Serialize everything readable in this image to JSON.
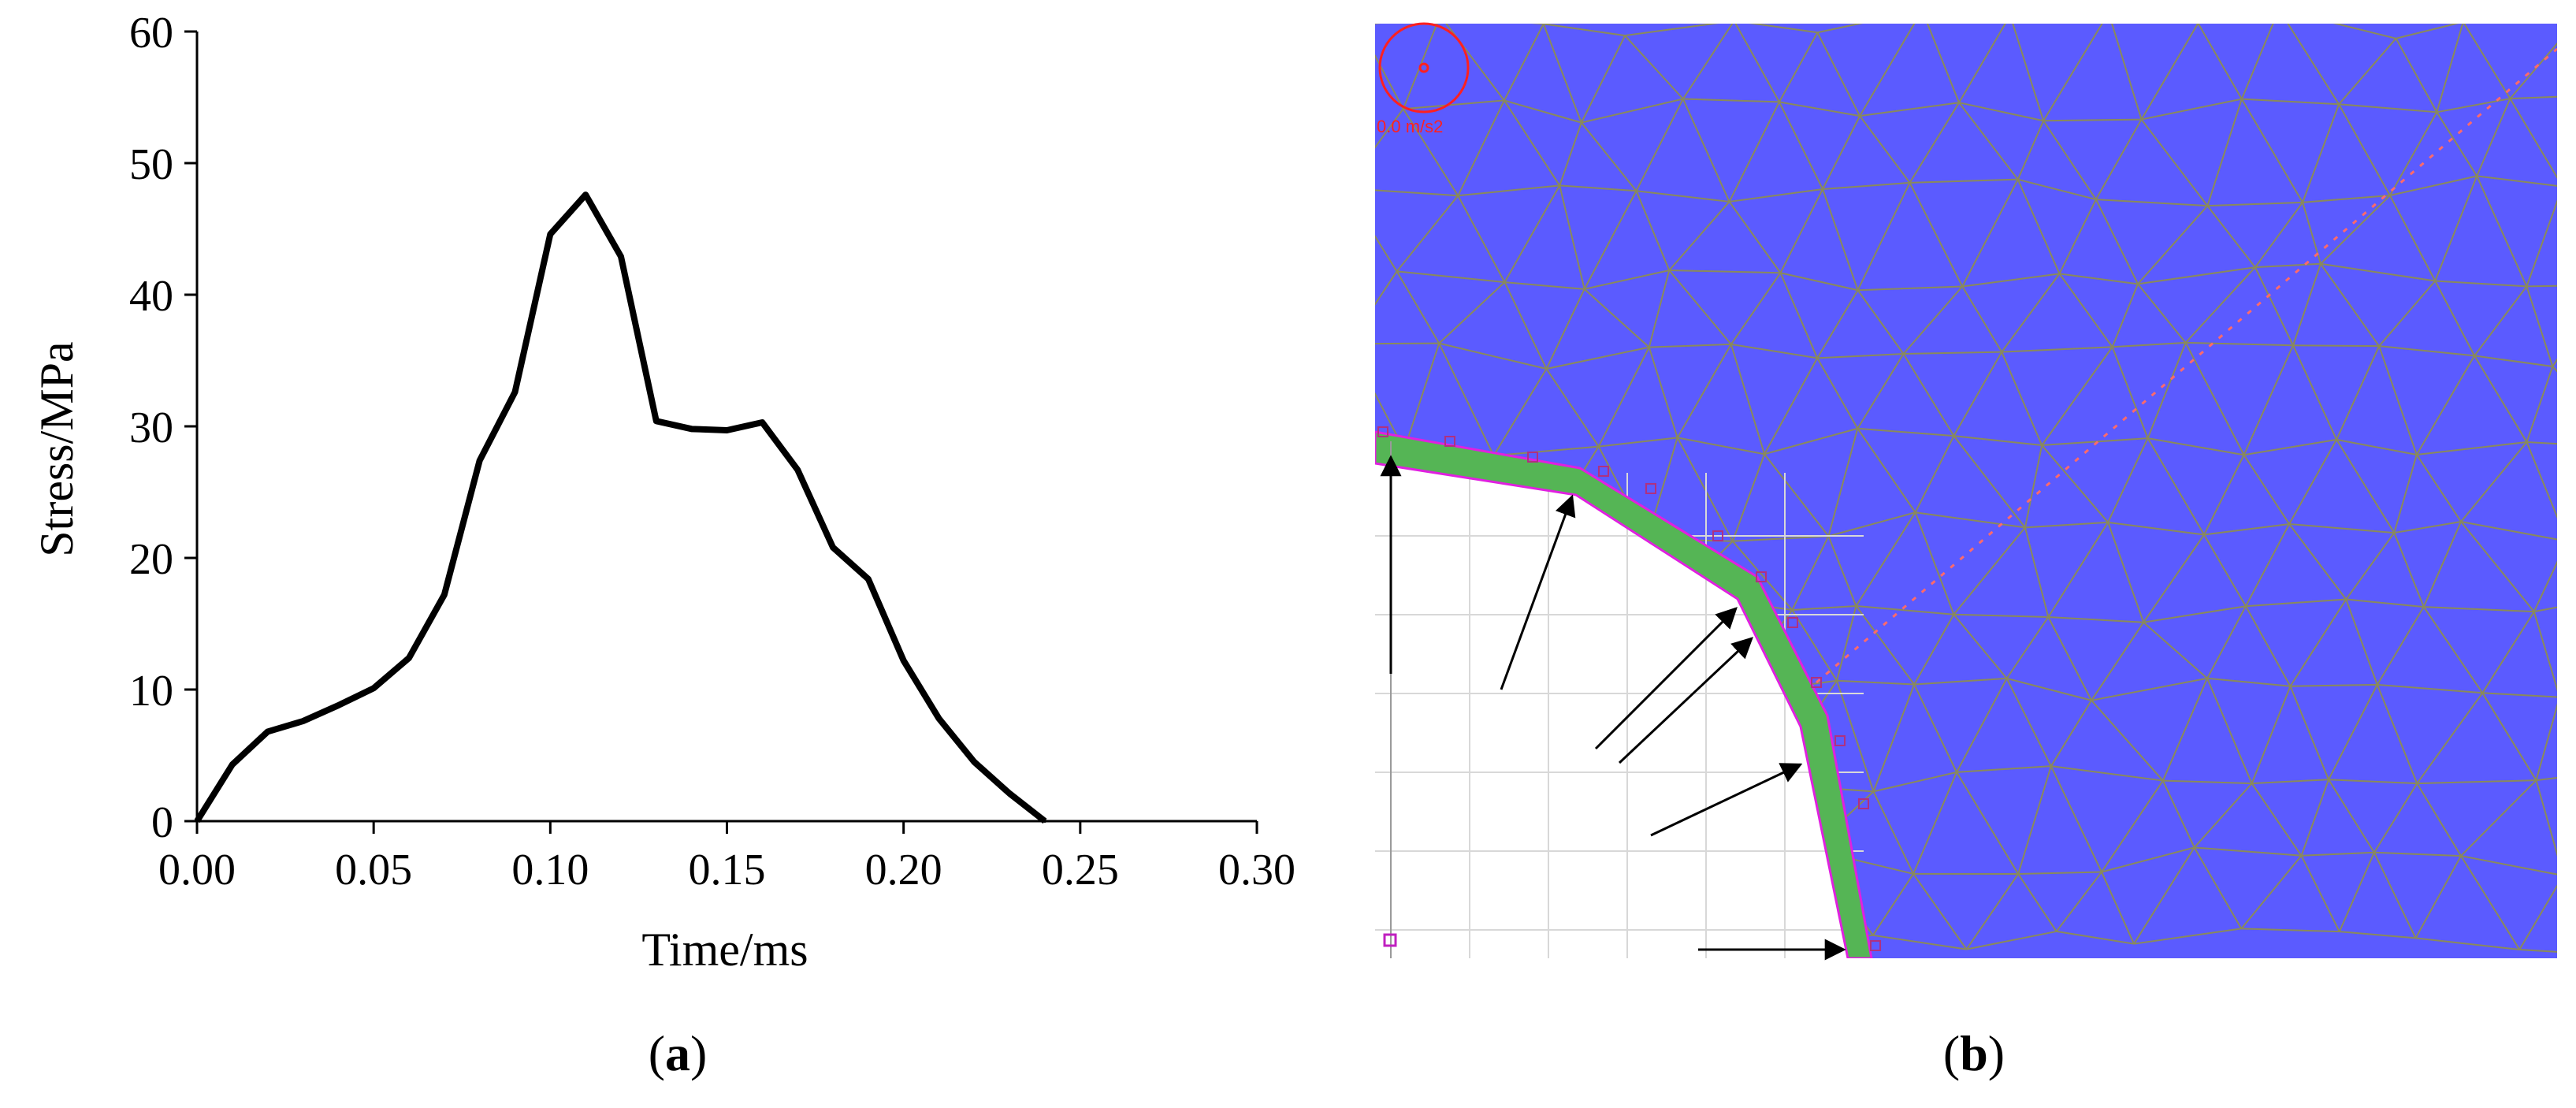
{
  "chart_data": {
    "type": "line",
    "xlabel": "Time/ms",
    "ylabel": "Stress/MPa",
    "xlim": [
      0,
      0.3
    ],
    "ylim": [
      0,
      60
    ],
    "x_ticks": [
      "0.00",
      "0.05",
      "0.10",
      "0.15",
      "0.20",
      "0.25",
      "0.30"
    ],
    "y_ticks": [
      "0",
      "10",
      "20",
      "30",
      "40",
      "50",
      "60"
    ],
    "grid": false,
    "series": [
      {
        "color": "#000000",
        "x": [
          0.0,
          0.01,
          0.02,
          0.03,
          0.04,
          0.05,
          0.06,
          0.07,
          0.08,
          0.09,
          0.1,
          0.11,
          0.12,
          0.13,
          0.14,
          0.15,
          0.16,
          0.17,
          0.18,
          0.19,
          0.2,
          0.21,
          0.22,
          0.23,
          0.24
        ],
        "y": [
          0.0,
          4.3,
          6.8,
          7.6,
          8.8,
          10.1,
          12.4,
          17.2,
          27.4,
          32.6,
          44.6,
          47.6,
          42.9,
          30.4,
          29.8,
          29.7,
          30.3,
          26.7,
          20.8,
          18.4,
          12.2,
          7.8,
          4.5,
          2.1,
          0.0
        ]
      }
    ]
  },
  "simulation": {
    "scale_label": "0.0 m/s2",
    "colors": {
      "rock": "#5b5bff",
      "lining": "#55b555",
      "mesh": "#8a8a5a",
      "opening": "#ffffff",
      "outline": "#e020e0",
      "marker": "#ff2020"
    }
  },
  "captions": {
    "a": "a",
    "b": "b"
  }
}
